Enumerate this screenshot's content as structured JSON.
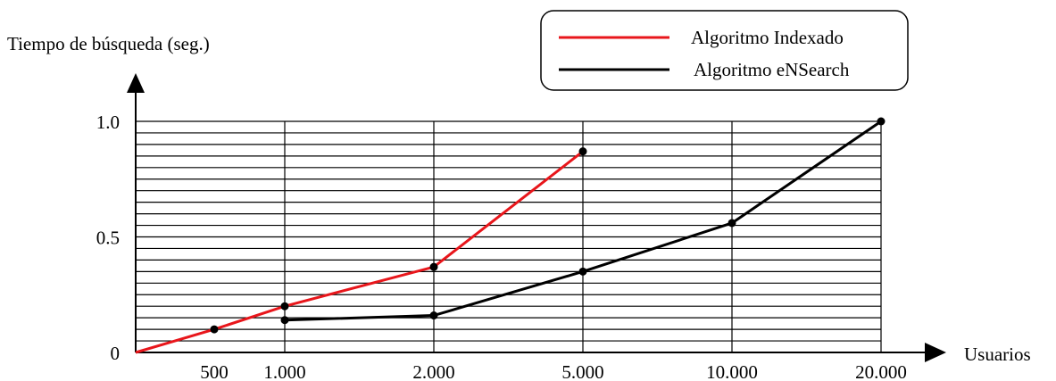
{
  "chart_data": {
    "type": "line",
    "ylabel": "Tiempo de búsqueda (seg.)",
    "xlabel": "Usuarios",
    "x_categories": [
      "500",
      "1.000",
      "2.000",
      "5.000",
      "10.000",
      "20.000"
    ],
    "y_ticks": [
      {
        "value": 0,
        "label": "0"
      },
      {
        "value": 0.5,
        "label": "0.5"
      },
      {
        "value": 1.0,
        "label": "1.0"
      }
    ],
    "ylim": [
      0,
      1.0
    ],
    "grid": true,
    "legend_position": "top-right",
    "series": [
      {
        "name": "Algoritmo Indexado",
        "color": "#e8161b",
        "points": [
          {
            "x": "500",
            "y": 0.1
          },
          {
            "x": "1.000",
            "y": 0.2
          },
          {
            "x": "2.000",
            "y": 0.37
          },
          {
            "x": "5.000",
            "y": 0.87
          }
        ]
      },
      {
        "name": "Algoritmo eNSearch",
        "color": "#000000",
        "points": [
          {
            "x": "1.000",
            "y": 0.14
          },
          {
            "x": "2.000",
            "y": 0.16
          },
          {
            "x": "5.000",
            "y": 0.35
          },
          {
            "x": "10.000",
            "y": 0.56
          },
          {
            "x": "20.000",
            "y": 1.0
          }
        ]
      }
    ]
  }
}
